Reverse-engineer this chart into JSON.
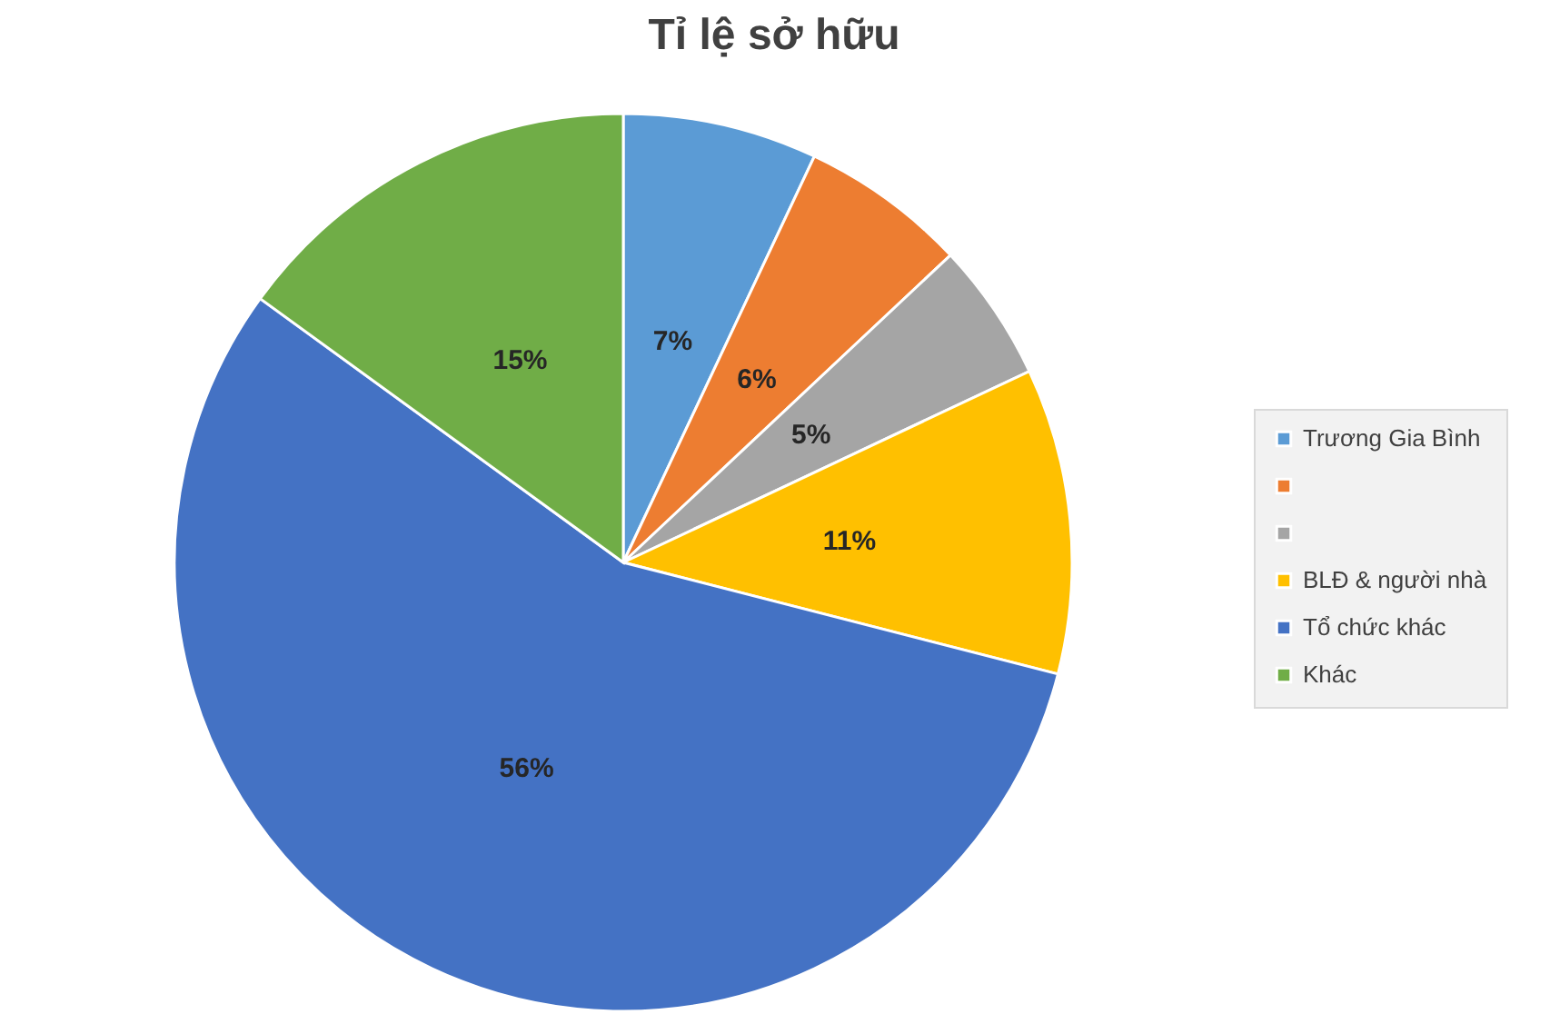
{
  "chart_data": {
    "type": "pie",
    "title": "Tỉ lệ sở hữu",
    "categories": [
      "Trương Gia Bình",
      null,
      null,
      "BLĐ & người nhà",
      "Tổ chức khác",
      "Khác"
    ],
    "values": [
      7,
      6,
      5,
      11,
      56,
      15
    ],
    "colors": [
      "#5b9bd5",
      "#ed7d31",
      "#a5a5a5",
      "#ffc000",
      "#4472c4",
      "#70ad47"
    ],
    "value_labels": [
      "7%",
      "6%",
      "5%",
      "11%",
      "56%",
      "15%"
    ],
    "legend": "right"
  }
}
